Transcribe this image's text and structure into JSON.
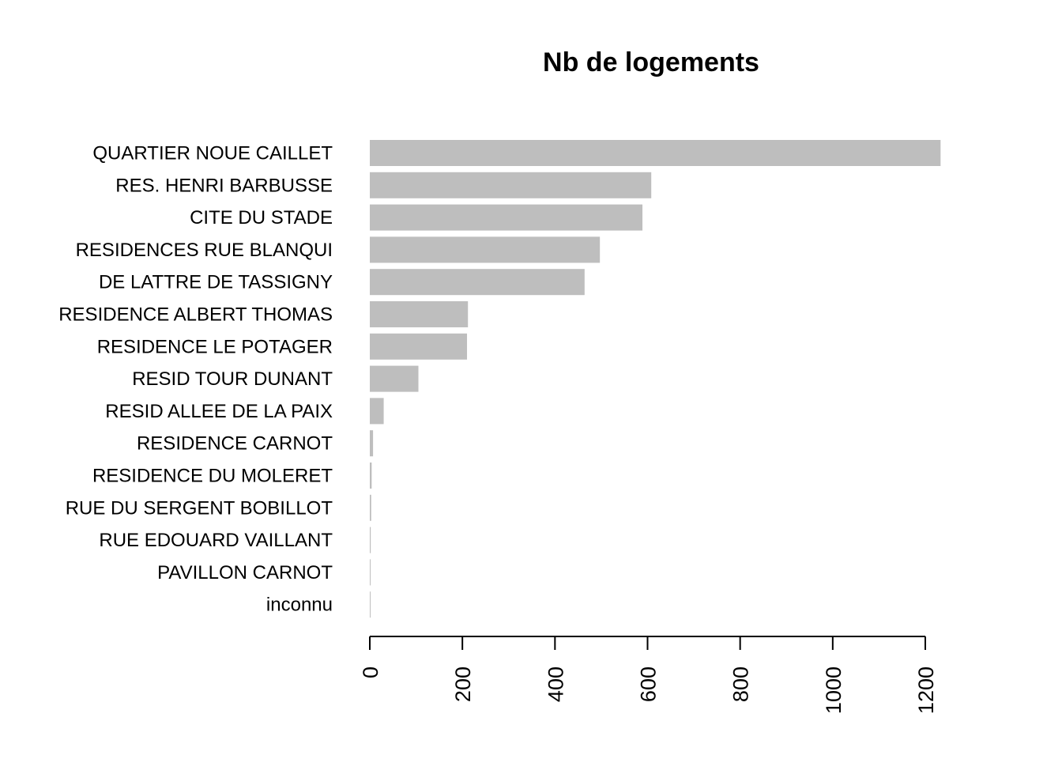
{
  "chart_data": {
    "type": "bar",
    "orientation": "horizontal",
    "title": "Nb de logements",
    "xlabel": "",
    "ylabel": "",
    "categories": [
      "QUARTIER NOUE CAILLET",
      "RES. HENRI BARBUSSE",
      "CITE DU STADE",
      "RESIDENCES RUE BLANQUI",
      "DE LATTRE DE TASSIGNY",
      "RESIDENCE ALBERT THOMAS",
      "RESIDENCE LE POTAGER",
      "RESID TOUR DUNANT",
      "RESID ALLEE DE LA PAIX",
      "RESIDENCE CARNOT",
      "RESIDENCE DU MOLERET",
      "RUE DU SERGENT BOBILLOT",
      "RUE EDOUARD VAILLANT",
      "PAVILLON CARNOT",
      "inconnu"
    ],
    "values": [
      1233,
      608,
      589,
      497,
      464,
      212,
      210,
      105,
      30,
      7,
      4,
      3,
      2,
      1,
      0
    ],
    "xlim": [
      0,
      1200
    ],
    "xticks": [
      0,
      200,
      400,
      600,
      800,
      1000,
      1200
    ],
    "bar_color": "#bebebe",
    "grid": false,
    "legend": false
  }
}
